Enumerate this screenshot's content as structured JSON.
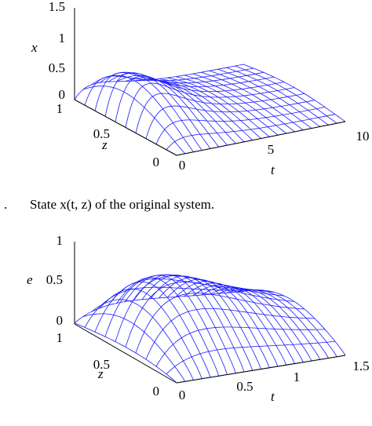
{
  "figures": [
    {
      "vertical_label": "x",
      "vertical_ticks": [
        "1.5",
        "1",
        "0.5",
        "0"
      ],
      "depth_label": "z",
      "depth_ticks": [
        "1",
        "0.5",
        "0"
      ],
      "horizontal_label": "t",
      "horizontal_ticks": [
        "0",
        "5",
        "10"
      ]
    },
    {
      "vertical_label": "e",
      "vertical_ticks": [
        "1",
        "0.5",
        "0"
      ],
      "depth_label": "z",
      "depth_ticks": [
        "1",
        "0.5",
        "0"
      ],
      "horizontal_label": "t",
      "horizontal_ticks": [
        "0",
        "0.5",
        "1",
        "1.5"
      ]
    }
  ],
  "caption": {
    "label": ".",
    "text": "State x(t, z) of the original system."
  }
}
